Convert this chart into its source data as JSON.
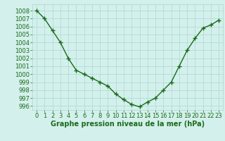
{
  "x": [
    0,
    1,
    2,
    3,
    4,
    5,
    6,
    7,
    8,
    9,
    10,
    11,
    12,
    13,
    14,
    15,
    16,
    17,
    18,
    19,
    20,
    21,
    22,
    23
  ],
  "y": [
    1008.0,
    1007.0,
    1005.5,
    1004.0,
    1002.0,
    1000.5,
    1000.0,
    999.5,
    999.0,
    998.5,
    997.5,
    996.8,
    996.2,
    995.9,
    996.5,
    997.0,
    998.0,
    999.0,
    1001.0,
    1003.0,
    1004.5,
    1005.8,
    1006.2,
    1006.8
  ],
  "line_color": "#1a6b1a",
  "marker": "+",
  "marker_size": 4,
  "line_width": 1.0,
  "background_color": "#d4f0ec",
  "grid_color": "#a8d8d0",
  "xlabel": "Graphe pression niveau de la mer (hPa)",
  "xlabel_fontsize": 7,
  "tick_color": "#1a6b1a",
  "tick_fontsize": 6,
  "ylim": [
    995.5,
    1008.8
  ],
  "xlim": [
    -0.5,
    23.5
  ],
  "yticks": [
    996,
    997,
    998,
    999,
    1000,
    1001,
    1002,
    1003,
    1004,
    1005,
    1006,
    1007,
    1008
  ],
  "xticks": [
    0,
    1,
    2,
    3,
    4,
    5,
    6,
    7,
    8,
    9,
    10,
    11,
    12,
    13,
    14,
    15,
    16,
    17,
    18,
    19,
    20,
    21,
    22,
    23
  ]
}
